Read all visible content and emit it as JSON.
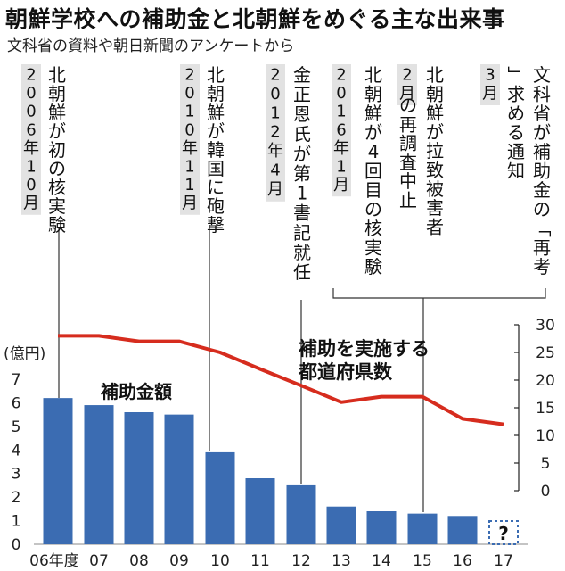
{
  "chart_data": {
    "type": "bar",
    "title": "朝鮮学校への補助金と北朝鮮をめぐる主な出来事",
    "subtitle": "文科省の資料や朝日新聞のアンケートから",
    "categories": [
      "06年度",
      "07",
      "08",
      "09",
      "10",
      "11",
      "12",
      "13",
      "14",
      "15",
      "16",
      "17"
    ],
    "unknown_marker": "?",
    "colors": {
      "bar": "#3b6cb2",
      "line": "#d62c1e",
      "date_bg": "#e2e2e2"
    },
    "left_axis": {
      "unit_label": "(億円)",
      "ylim": [
        0,
        7
      ],
      "ticks": [
        0,
        1,
        2,
        3,
        4,
        5,
        6,
        7
      ]
    },
    "right_axis": {
      "ylim": [
        0,
        30
      ],
      "ticks": [
        0,
        5,
        10,
        15,
        20,
        25,
        30
      ]
    },
    "series": [
      {
        "name": "補助金額",
        "type": "bar",
        "axis": "left",
        "values": [
          6.2,
          5.9,
          5.6,
          5.5,
          3.9,
          2.8,
          2.5,
          1.6,
          1.4,
          1.3,
          1.2,
          null
        ]
      },
      {
        "name": "補助を実施する都道府県数",
        "name_lines": [
          "補助を実施する",
          "都道府県数"
        ],
        "type": "line",
        "axis": "right",
        "values": [
          28,
          28,
          27,
          27,
          25,
          22,
          19,
          16,
          17,
          17,
          13,
          12
        ]
      }
    ],
    "events": [
      {
        "date": "2006年10月",
        "text": "北朝鮮が初の核実験",
        "category": "06年度"
      },
      {
        "date": "2010年11月",
        "text": "北朝鮮が韓国に砲撃",
        "category": "10"
      },
      {
        "date": "2012年4月",
        "text": "金正恩氏が第1書記就任",
        "category": "12"
      },
      {
        "date": "2016年1月",
        "text": "北朝鮮が4回目の核実験",
        "category": "15"
      },
      {
        "date": "2月",
        "text": "北朝鮮が拉致被害者の再調査中止",
        "category": "15"
      },
      {
        "date": "3月",
        "text": "文科省が補助金の「再考」求める通知",
        "category": "15"
      }
    ]
  }
}
